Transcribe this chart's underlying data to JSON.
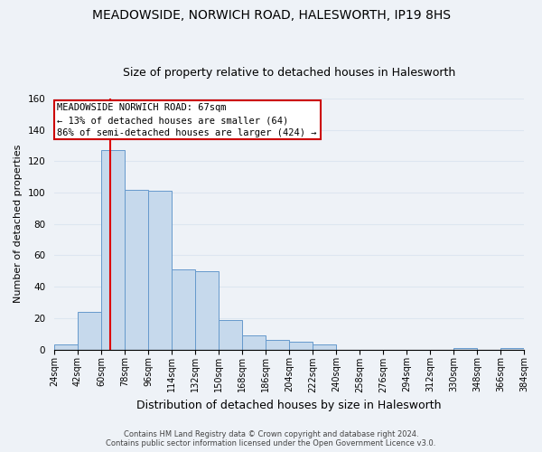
{
  "title": "MEADOWSIDE, NORWICH ROAD, HALESWORTH, IP19 8HS",
  "subtitle": "Size of property relative to detached houses in Halesworth",
  "xlabel": "Distribution of detached houses by size in Halesworth",
  "ylabel": "Number of detached properties",
  "bin_edges": [
    24,
    42,
    60,
    78,
    96,
    114,
    132,
    150,
    168,
    186,
    204,
    222,
    240,
    258,
    276,
    294,
    312,
    330,
    348,
    366,
    384
  ],
  "bar_heights": [
    3,
    24,
    127,
    102,
    101,
    51,
    50,
    19,
    9,
    6,
    5,
    3,
    0,
    0,
    0,
    0,
    0,
    1,
    0,
    1
  ],
  "bar_color": "#c6d9ec",
  "bar_edge_color": "#6699cc",
  "reference_line_x": 67,
  "reference_line_color": "#dd0000",
  "ylim": [
    0,
    160
  ],
  "yticks": [
    0,
    20,
    40,
    60,
    80,
    100,
    120,
    140,
    160
  ],
  "tick_labels": [
    "24sqm",
    "42sqm",
    "60sqm",
    "78sqm",
    "96sqm",
    "114sqm",
    "132sqm",
    "150sqm",
    "168sqm",
    "186sqm",
    "204sqm",
    "222sqm",
    "240sqm",
    "258sqm",
    "276sqm",
    "294sqm",
    "312sqm",
    "330sqm",
    "348sqm",
    "366sqm",
    "384sqm"
  ],
  "annotation_title": "MEADOWSIDE NORWICH ROAD: 67sqm",
  "annotation_line1": "← 13% of detached houses are smaller (64)",
  "annotation_line2": "86% of semi-detached houses are larger (424) →",
  "annotation_box_color": "#ffffff",
  "annotation_box_edge": "#cc0000",
  "footer_line1": "Contains HM Land Registry data © Crown copyright and database right 2024.",
  "footer_line2": "Contains public sector information licensed under the Open Government Licence v3.0.",
  "grid_color": "#dde6f0",
  "background_color": "#eef2f7",
  "title_fontsize": 10,
  "subtitle_fontsize": 9,
  "ylabel_fontsize": 8,
  "xlabel_fontsize": 9,
  "tick_fontsize": 7,
  "footer_fontsize": 6,
  "annot_fontsize": 7.5
}
